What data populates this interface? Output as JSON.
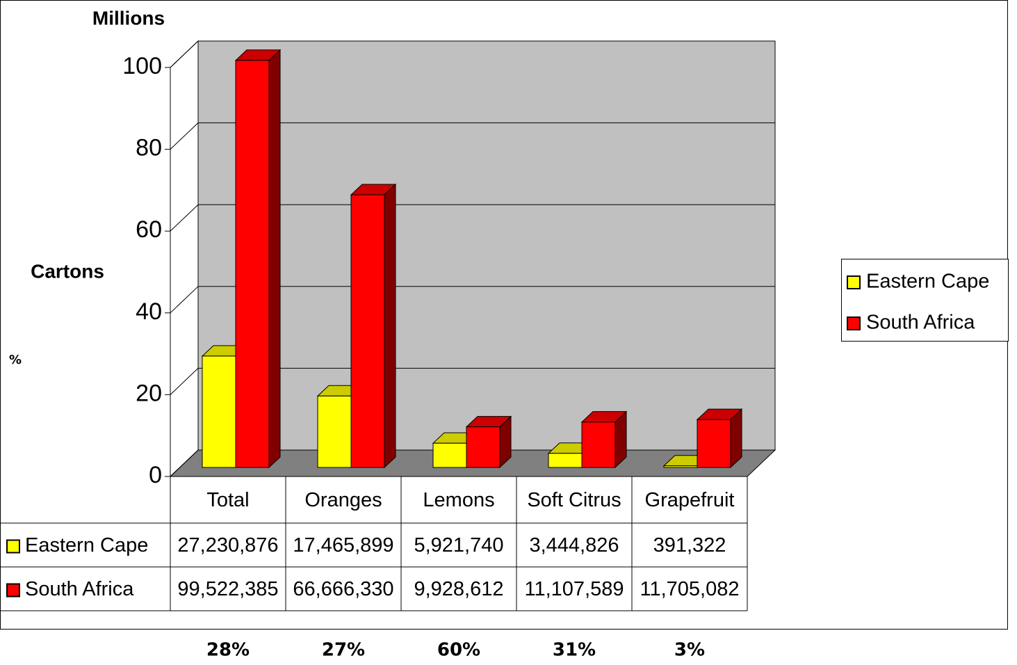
{
  "chart_data": {
    "type": "bar3d",
    "y_axis_label": "Millions",
    "side_label": "Cartons",
    "categories": [
      "Total",
      "Oranges",
      "Lemons",
      "Soft Citrus",
      "Grapefruit"
    ],
    "series": [
      {
        "name": "Eastern Cape",
        "color": "#ffff00",
        "values": [
          27.230876,
          17.465899,
          5.92174,
          3.444826,
          0.391322
        ],
        "value_labels": [
          "27,230,876",
          "17,465,899",
          "5,921,740",
          "3,444,826",
          "391,322"
        ]
      },
      {
        "name": "South Africa",
        "color": "#ff0000",
        "values": [
          99.522385,
          66.66633,
          9.928612,
          11.107589,
          11.705082
        ],
        "value_labels": [
          "99,522,385",
          "66,666,330",
          "9,928,612",
          "11,107,589",
          "11,705,082"
        ]
      }
    ],
    "ylim": [
      0,
      100
    ],
    "yticks": [
      0,
      20,
      40,
      60,
      80,
      100
    ],
    "grid": true,
    "legend": "right",
    "percent_row": {
      "label": "%",
      "values": [
        28,
        27,
        60,
        31,
        3
      ],
      "value_labels": [
        "28%",
        "27%",
        "60%",
        "31%",
        "3%"
      ]
    }
  }
}
